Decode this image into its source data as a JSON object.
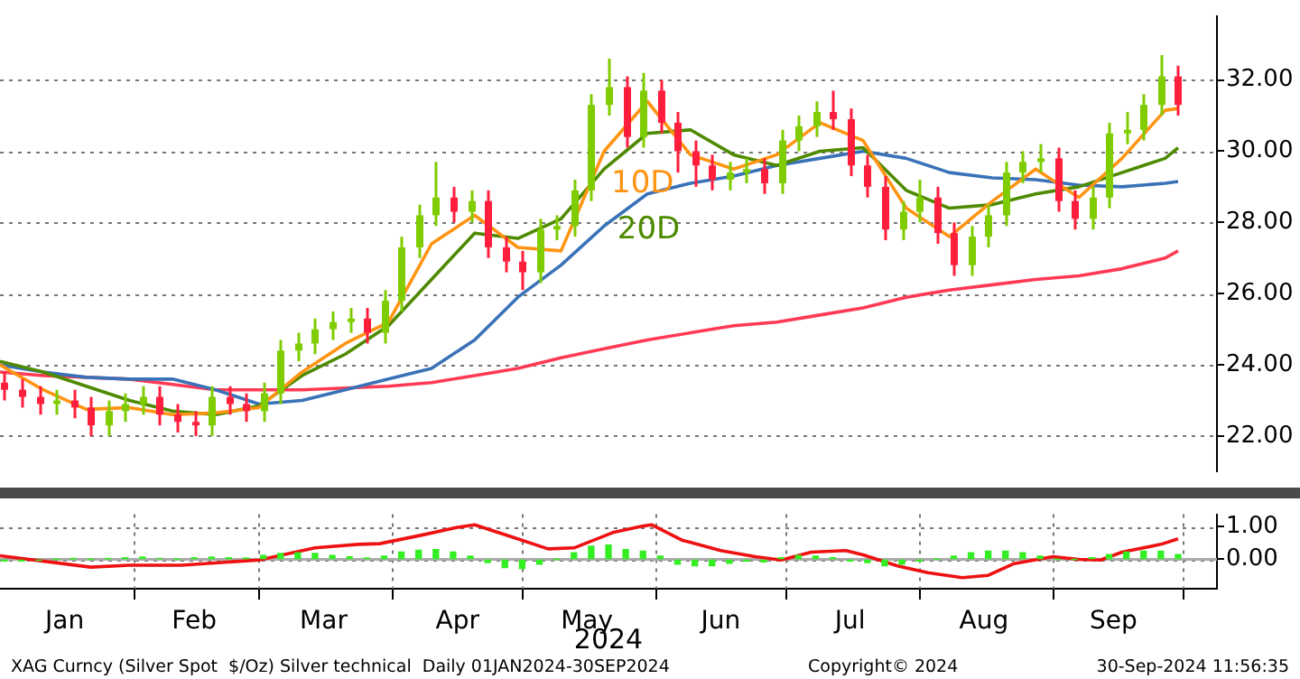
{
  "chart_data": [
    {
      "type": "line",
      "xlim": [
        "2024-01-01",
        "2024-10-09"
      ],
      "ylim": [
        21.0,
        33.8
      ],
      "yticks": [
        {
          "value": 22,
          "label": "22.00"
        },
        {
          "value": 24,
          "label": "24.00"
        },
        {
          "value": 26,
          "label": "26.00"
        },
        {
          "value": 28,
          "label": "28.00"
        },
        {
          "value": 30,
          "label": "30.00"
        },
        {
          "value": 32,
          "label": "32.00"
        }
      ],
      "grid": "y",
      "tick_labels": "y",
      "x": [
        "2024-01-01",
        "2024-01-11",
        "2024-01-21",
        "2024-01-31",
        "2024-02-10",
        "2024-02-20",
        "2024-03-01",
        "2024-03-11",
        "2024-03-21",
        "2024-03-31",
        "2024-04-10",
        "2024-04-20",
        "2024-04-30",
        "2024-05-10",
        "2024-05-20",
        "2024-05-30",
        "2024-06-09",
        "2024-06-19",
        "2024-06-29",
        "2024-07-09",
        "2024-07-19",
        "2024-07-29",
        "2024-08-08",
        "2024-08-18",
        "2024-08-28",
        "2024-09-07",
        "2024-09-17",
        "2024-09-27",
        "2024-09-30"
      ],
      "series": [
        {
          "type": "candlestick",
          "x": [
            "2024-01-02",
            "2024-01-06",
            "2024-01-10",
            "2024-01-14",
            "2024-01-18",
            "2024-01-22",
            "2024-01-26",
            "2024-01-30",
            "2024-02-03",
            "2024-02-07",
            "2024-02-11",
            "2024-02-15",
            "2024-02-19",
            "2024-02-23",
            "2024-02-27",
            "2024-03-02",
            "2024-03-06",
            "2024-03-10",
            "2024-03-14",
            "2024-03-18",
            "2024-03-22",
            "2024-03-26",
            "2024-03-30",
            "2024-04-03",
            "2024-04-07",
            "2024-04-11",
            "2024-04-15",
            "2024-04-19",
            "2024-04-23",
            "2024-04-27",
            "2024-05-01",
            "2024-05-05",
            "2024-05-09",
            "2024-05-13",
            "2024-05-17",
            "2024-05-21",
            "2024-05-25",
            "2024-05-29",
            "2024-06-02",
            "2024-06-06",
            "2024-06-10",
            "2024-06-14",
            "2024-06-18",
            "2024-06-22",
            "2024-06-26",
            "2024-06-30",
            "2024-07-04",
            "2024-07-08",
            "2024-07-12",
            "2024-07-16",
            "2024-07-20",
            "2024-07-24",
            "2024-07-28",
            "2024-08-01",
            "2024-08-05",
            "2024-08-09",
            "2024-08-13",
            "2024-08-17",
            "2024-08-21",
            "2024-08-25",
            "2024-08-29",
            "2024-09-02",
            "2024-09-06",
            "2024-09-10",
            "2024-09-14",
            "2024-09-18",
            "2024-09-22",
            "2024-09-26",
            "2024-09-30"
          ],
          "ohlc": [
            [
              23.5,
              23.8,
              23.0,
              23.3
            ],
            [
              23.3,
              23.6,
              22.8,
              23.1
            ],
            [
              23.1,
              23.4,
              22.6,
              22.9
            ],
            [
              22.9,
              23.3,
              22.6,
              23.0
            ],
            [
              23.0,
              23.3,
              22.5,
              22.8
            ],
            [
              22.8,
              23.1,
              22.0,
              22.3
            ],
            [
              22.3,
              23.0,
              22.0,
              22.7
            ],
            [
              22.7,
              23.2,
              22.4,
              22.9
            ],
            [
              22.9,
              23.4,
              22.6,
              23.1
            ],
            [
              23.1,
              23.4,
              22.3,
              22.6
            ],
            [
              22.6,
              22.9,
              22.1,
              22.4
            ],
            [
              22.4,
              22.7,
              22.0,
              22.3
            ],
            [
              22.3,
              23.4,
              22.0,
              23.1
            ],
            [
              23.1,
              23.4,
              22.6,
              22.9
            ],
            [
              22.9,
              23.2,
              22.4,
              22.7
            ],
            [
              22.7,
              23.5,
              22.4,
              23.2
            ],
            [
              23.2,
              24.7,
              22.9,
              24.4
            ],
            [
              24.4,
              24.9,
              24.1,
              24.6
            ],
            [
              24.6,
              25.3,
              24.3,
              25.0
            ],
            [
              25.0,
              25.5,
              24.7,
              25.2
            ],
            [
              25.2,
              25.6,
              24.9,
              25.3
            ],
            [
              25.3,
              25.6,
              24.6,
              24.9
            ],
            [
              24.9,
              26.1,
              24.6,
              25.8
            ],
            [
              25.8,
              27.6,
              25.5,
              27.3
            ],
            [
              27.3,
              28.5,
              27.0,
              28.2
            ],
            [
              28.2,
              29.7,
              27.9,
              28.7
            ],
            [
              28.7,
              29.0,
              28.0,
              28.3
            ],
            [
              28.3,
              28.9,
              28.0,
              28.6
            ],
            [
              28.6,
              28.9,
              27.0,
              27.3
            ],
            [
              27.3,
              27.6,
              26.6,
              26.9
            ],
            [
              26.9,
              27.2,
              26.1,
              26.6
            ],
            [
              26.6,
              28.1,
              26.3,
              27.8
            ],
            [
              27.8,
              28.2,
              27.5,
              27.9
            ],
            [
              27.9,
              29.2,
              27.6,
              28.9
            ],
            [
              28.9,
              31.6,
              28.6,
              31.3
            ],
            [
              31.3,
              32.6,
              31.0,
              31.8
            ],
            [
              31.8,
              32.1,
              30.1,
              30.4
            ],
            [
              30.4,
              32.2,
              30.1,
              31.7
            ],
            [
              31.7,
              32.0,
              30.5,
              30.8
            ],
            [
              30.8,
              31.1,
              29.4,
              30.0
            ],
            [
              30.0,
              30.3,
              29.0,
              29.6
            ],
            [
              29.6,
              29.9,
              28.9,
              29.2
            ],
            [
              29.2,
              29.7,
              28.9,
              29.4
            ],
            [
              29.4,
              29.8,
              29.1,
              29.5
            ],
            [
              29.5,
              29.8,
              28.8,
              29.1
            ],
            [
              29.1,
              30.6,
              28.8,
              30.3
            ],
            [
              30.3,
              31.0,
              30.0,
              30.7
            ],
            [
              30.7,
              31.4,
              30.4,
              31.1
            ],
            [
              31.1,
              31.7,
              30.6,
              30.9
            ],
            [
              30.9,
              31.2,
              29.3,
              29.6
            ],
            [
              29.6,
              29.9,
              28.7,
              29.0
            ],
            [
              29.0,
              29.3,
              27.5,
              27.8
            ],
            [
              27.8,
              28.6,
              27.5,
              28.3
            ],
            [
              28.3,
              29.2,
              28.0,
              28.7
            ],
            [
              28.7,
              29.0,
              27.4,
              27.7
            ],
            [
              27.7,
              28.0,
              26.5,
              26.8
            ],
            [
              26.8,
              27.9,
              26.5,
              27.6
            ],
            [
              27.6,
              28.5,
              27.3,
              28.2
            ],
            [
              28.2,
              29.7,
              27.9,
              29.4
            ],
            [
              29.4,
              30.0,
              29.1,
              29.7
            ],
            [
              29.7,
              30.2,
              29.4,
              29.8
            ],
            [
              29.8,
              30.1,
              28.3,
              28.6
            ],
            [
              28.6,
              28.9,
              27.8,
              28.1
            ],
            [
              28.1,
              29.0,
              27.8,
              28.7
            ],
            [
              28.7,
              30.8,
              28.4,
              30.5
            ],
            [
              30.5,
              31.1,
              30.2,
              30.6
            ],
            [
              30.6,
              31.6,
              30.3,
              31.3
            ],
            [
              31.3,
              32.7,
              31.0,
              32.1
            ],
            [
              32.1,
              32.4,
              31.0,
              31.3
            ]
          ],
          "colors": [
            "#ff1f3d",
            "#ff1f3d",
            "#ff1f3d",
            "#7fcc00",
            "#ff1f3d",
            "#ff1f3d",
            "#7fcc00",
            "#7fcc00",
            "#7fcc00",
            "#ff1f3d",
            "#ff1f3d",
            "#ff1f3d",
            "#7fcc00",
            "#ff1f3d",
            "#ff1f3d",
            "#7fcc00",
            "#7fcc00",
            "#7fcc00",
            "#7fcc00",
            "#7fcc00",
            "#7fcc00",
            "#ff1f3d",
            "#7fcc00",
            "#7fcc00",
            "#7fcc00",
            "#7fcc00",
            "#ff1f3d",
            "#7fcc00",
            "#ff1f3d",
            "#ff1f3d",
            "#ff1f3d",
            "#7fcc00",
            "#7fcc00",
            "#7fcc00",
            "#7fcc00",
            "#7fcc00",
            "#ff1f3d",
            "#7fcc00",
            "#ff1f3d",
            "#ff1f3d",
            "#ff1f3d",
            "#ff1f3d",
            "#7fcc00",
            "#7fcc00",
            "#ff1f3d",
            "#7fcc00",
            "#7fcc00",
            "#7fcc00",
            "#ff1f3d",
            "#ff1f3d",
            "#ff1f3d",
            "#ff1f3d",
            "#7fcc00",
            "#7fcc00",
            "#ff1f3d",
            "#ff1f3d",
            "#7fcc00",
            "#7fcc00",
            "#7fcc00",
            "#7fcc00",
            "#7fcc00",
            "#ff1f3d",
            "#ff1f3d",
            "#7fcc00",
            "#7fcc00",
            "#7fcc00",
            "#7fcc00",
            "#7fcc00",
            "#ff1f3d"
          ]
        },
        {
          "color": "#ff9412",
          "values": [
            24.0,
            23.3,
            22.75,
            22.8,
            22.6,
            22.65,
            22.8,
            23.8,
            24.6,
            25.2,
            27.4,
            28.2,
            27.3,
            27.2,
            30.0,
            31.4,
            29.9,
            29.5,
            29.9,
            30.8,
            30.3,
            28.4,
            27.6,
            28.6,
            29.5,
            28.7,
            29.8,
            31.15,
            31.2
          ]
        },
        {
          "color": "#4e8a00",
          "values": [
            24.1,
            23.8,
            23.4,
            23.0,
            22.7,
            22.6,
            22.85,
            23.7,
            24.3,
            25.1,
            26.4,
            27.7,
            27.55,
            28.1,
            29.5,
            30.5,
            30.6,
            29.9,
            29.6,
            30.0,
            30.1,
            28.9,
            28.4,
            28.5,
            28.8,
            29.0,
            29.4,
            29.8,
            30.1
          ]
        },
        {
          "color": "#3a72b8",
          "values": [
            24.0,
            23.8,
            23.65,
            23.6,
            23.6,
            23.3,
            22.9,
            23.0,
            23.3,
            23.6,
            23.9,
            24.7,
            25.9,
            26.8,
            27.9,
            28.8,
            29.1,
            29.3,
            29.6,
            29.8,
            30.0,
            29.8,
            29.4,
            29.25,
            29.2,
            29.05,
            29.0,
            29.1,
            29.15
          ]
        },
        {
          "color": "#ff3a55",
          "values": [
            23.8,
            23.7,
            23.65,
            23.6,
            23.45,
            23.3,
            23.3,
            23.3,
            23.35,
            23.4,
            23.5,
            23.7,
            23.9,
            24.2,
            24.45,
            24.7,
            24.9,
            25.1,
            25.2,
            25.4,
            25.6,
            25.9,
            26.1,
            26.25,
            26.4,
            26.5,
            26.7,
            27.0,
            27.2
          ]
        }
      ],
      "annotations": [
        "10D",
        "20D"
      ]
    },
    {
      "type": "line",
      "xlim": [
        "2024-01-01",
        "2024-10-09"
      ],
      "ylim": [
        -0.9,
        1.38
      ],
      "yticks": [
        {
          "value": 0,
          "label": "0.00"
        },
        {
          "value": 1,
          "label": "1.00"
        }
      ],
      "grid": true,
      "xlabel": "2024",
      "xticks": [
        {
          "value": "2024-02-01",
          "label": null
        },
        {
          "value": "2024-03-01",
          "label": null
        },
        {
          "value": "2024-04-01",
          "label": null
        },
        {
          "value": "2024-05-01",
          "label": null
        },
        {
          "value": "2024-06-01",
          "label": null
        },
        {
          "value": "2024-07-01",
          "label": null
        },
        {
          "value": "2024-08-01",
          "label": null
        },
        {
          "value": "2024-09-01",
          "label": null
        },
        {
          "value": "2024-10-01",
          "label": null
        },
        {
          "value": "2024-01-16",
          "label": "Jan"
        },
        {
          "value": "2024-02-15",
          "label": "Feb"
        },
        {
          "value": "2024-03-16",
          "label": "Mar"
        },
        {
          "value": "2024-04-16",
          "label": "Apr"
        },
        {
          "value": "2024-05-16",
          "label": "May"
        },
        {
          "value": "2024-06-16",
          "label": "Jun"
        },
        {
          "value": "2024-07-16",
          "label": "Jul"
        },
        {
          "value": "2024-08-16",
          "label": "Aug"
        },
        {
          "value": "2024-09-15",
          "label": "Sep"
        }
      ],
      "ref_lines": [
        {
          "axis": "y",
          "value": 0,
          "color": "#aaaaaa"
        }
      ],
      "series": [
        {
          "type": "bar",
          "color": "#33ee22",
          "x": [
            "2024-01-02",
            "2024-01-06",
            "2024-01-10",
            "2024-01-14",
            "2024-01-18",
            "2024-01-22",
            "2024-01-26",
            "2024-01-30",
            "2024-02-03",
            "2024-02-07",
            "2024-02-11",
            "2024-02-15",
            "2024-02-19",
            "2024-02-23",
            "2024-02-27",
            "2024-03-02",
            "2024-03-06",
            "2024-03-10",
            "2024-03-14",
            "2024-03-18",
            "2024-03-22",
            "2024-03-26",
            "2024-03-30",
            "2024-04-03",
            "2024-04-07",
            "2024-04-11",
            "2024-04-15",
            "2024-04-19",
            "2024-04-23",
            "2024-04-27",
            "2024-05-01",
            "2024-05-05",
            "2024-05-09",
            "2024-05-13",
            "2024-05-17",
            "2024-05-21",
            "2024-05-25",
            "2024-05-29",
            "2024-06-02",
            "2024-06-06",
            "2024-06-10",
            "2024-06-14",
            "2024-06-18",
            "2024-06-22",
            "2024-06-26",
            "2024-06-30",
            "2024-07-04",
            "2024-07-08",
            "2024-07-12",
            "2024-07-16",
            "2024-07-20",
            "2024-07-24",
            "2024-07-28",
            "2024-08-01",
            "2024-08-05",
            "2024-08-09",
            "2024-08-13",
            "2024-08-17",
            "2024-08-21",
            "2024-08-25",
            "2024-08-29",
            "2024-09-02",
            "2024-09-06",
            "2024-09-10",
            "2024-09-14",
            "2024-09-18",
            "2024-09-22",
            "2024-09-26",
            "2024-09-30"
          ],
          "values": [
            -0.05,
            -0.05,
            -0.03,
            0.0,
            0.02,
            0.0,
            0.02,
            0.05,
            0.07,
            0.03,
            0.0,
            0.05,
            0.07,
            0.05,
            0.04,
            0.12,
            0.18,
            0.2,
            0.18,
            0.12,
            0.08,
            0.04,
            0.1,
            0.22,
            0.28,
            0.3,
            0.22,
            0.1,
            -0.1,
            -0.25,
            -0.28,
            -0.15,
            0.0,
            0.2,
            0.4,
            0.44,
            0.3,
            0.25,
            0.1,
            -0.15,
            -0.2,
            -0.2,
            -0.12,
            -0.05,
            -0.08,
            0.05,
            0.12,
            0.1,
            0.05,
            -0.05,
            -0.1,
            -0.2,
            -0.15,
            -0.05,
            0.0,
            0.1,
            0.2,
            0.25,
            0.25,
            0.2,
            0.1,
            0.0,
            0.0,
            0.05,
            0.15,
            0.22,
            0.25,
            0.25,
            0.15
          ]
        },
        {
          "color": "#ee1111",
          "x": [
            "2024-01-01",
            "2024-01-22",
            "2024-01-31",
            "2024-02-12",
            "2024-03-01",
            "2024-03-14",
            "2024-03-24",
            "2024-03-29",
            "2024-04-08",
            "2024-04-16",
            "2024-04-20",
            "2024-04-29",
            "2024-05-07",
            "2024-05-13",
            "2024-05-22",
            "2024-05-29",
            "2024-05-31",
            "2024-06-07",
            "2024-06-16",
            "2024-06-24",
            "2024-06-30",
            "2024-07-07",
            "2024-07-15",
            "2024-07-19",
            "2024-07-27",
            "2024-08-03",
            "2024-08-11",
            "2024-08-17",
            "2024-08-23",
            "2024-09-01",
            "2024-09-07",
            "2024-09-12",
            "2024-09-17",
            "2024-09-26",
            "2024-09-30"
          ],
          "values": [
            0.11,
            -0.24,
            -0.18,
            -0.18,
            -0.02,
            0.35,
            0.46,
            0.48,
            0.75,
            0.98,
            1.06,
            0.67,
            0.32,
            0.35,
            0.82,
            1.02,
            1.06,
            0.59,
            0.27,
            0.08,
            -0.02,
            0.22,
            0.27,
            0.14,
            -0.2,
            -0.41,
            -0.56,
            -0.49,
            -0.13,
            0.08,
            0,
            -0.02,
            0.22,
            0.46,
            0.63
          ]
        }
      ],
      "annotations": [
        "XAG Curncy (Silver Spot  $/Oz) Silver technical  Daily 01JAN2024-30SEP2024",
        "Copyright© 2024",
        "30-Sep-2024 11:56:35"
      ]
    }
  ]
}
